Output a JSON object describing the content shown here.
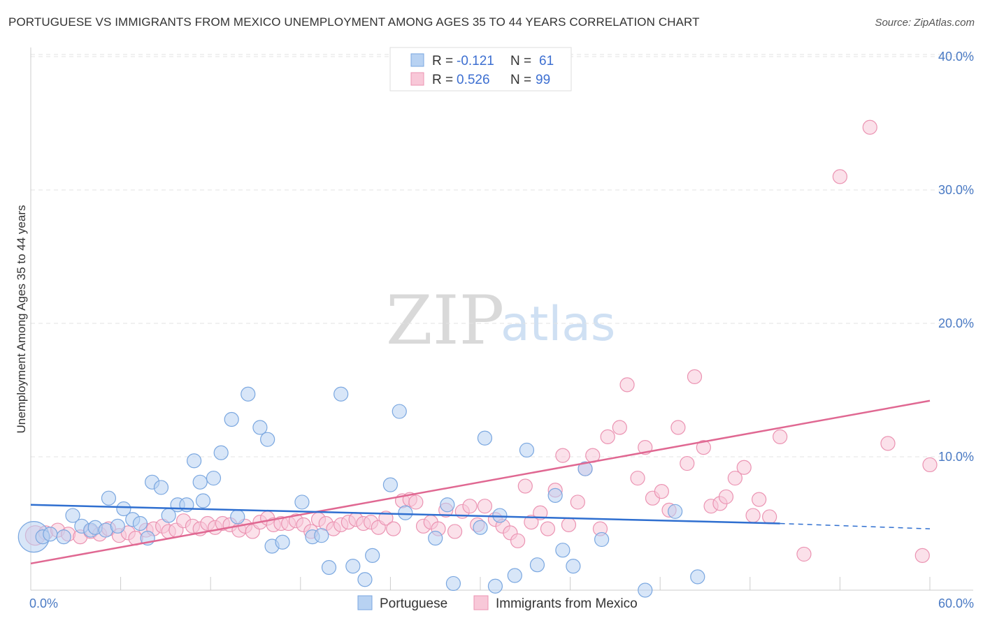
{
  "header": {
    "title": "PORTUGUESE VS IMMIGRANTS FROM MEXICO UNEMPLOYMENT AMONG AGES 35 TO 44 YEARS CORRELATION CHART",
    "source": "Source: ZipAtlas.com"
  },
  "watermark": {
    "zip": "ZIP",
    "atlas": "atlas"
  },
  "legend": {
    "r_label": "R =",
    "n_label": "N =",
    "rows": [
      {
        "r": "-0.121",
        "n": "61"
      },
      {
        "r": "0.526",
        "n": "99"
      }
    ]
  },
  "colors": {
    "portuguese_fill": "#b8d2f2",
    "portuguese_stroke": "#7aa7e0",
    "portuguese_line": "#2f6fd0",
    "mexico_fill": "#f8c8d8",
    "mexico_stroke": "#eb93b2",
    "mexico_line": "#e06892"
  },
  "chart_data": {
    "type": "scatter",
    "title": "PORTUGUESE VS IMMIGRANTS FROM MEXICO UNEMPLOYMENT AMONG AGES 35 TO 44 YEARS CORRELATION CHART",
    "xlabel": "",
    "ylabel": "Unemployment Among Ages 35 to 44 years",
    "xlim": [
      0,
      60
    ],
    "ylim": [
      0,
      40
    ],
    "x_tick_labels": [
      "0.0%",
      "60.0%"
    ],
    "y_ticks": [
      10,
      20,
      30,
      40
    ],
    "y_tick_labels": [
      "10.0%",
      "20.0%",
      "30.0%",
      "40.0%"
    ],
    "grid": true,
    "legend_position": "top-center",
    "series": [
      {
        "name": "Portuguese",
        "r": -0.121,
        "n": 61,
        "trend": {
          "x": [
            0,
            50
          ],
          "y": [
            6.4,
            5.0
          ],
          "dashed_to": [
            60,
            4.6
          ]
        },
        "points": [
          [
            0.2,
            4.0,
            22
          ],
          [
            0.8,
            4.0,
            10
          ],
          [
            1.3,
            4.2,
            10
          ],
          [
            2.2,
            4.0,
            10
          ],
          [
            2.8,
            5.6,
            10
          ],
          [
            3.4,
            4.8,
            10
          ],
          [
            4.0,
            4.5,
            10
          ],
          [
            4.3,
            4.7,
            10
          ],
          [
            5.0,
            4.5,
            10
          ],
          [
            5.2,
            6.9,
            10
          ],
          [
            5.8,
            4.8,
            10
          ],
          [
            6.2,
            6.1,
            10
          ],
          [
            6.8,
            5.3,
            10
          ],
          [
            7.3,
            5.0,
            10
          ],
          [
            7.8,
            3.9,
            10
          ],
          [
            8.1,
            8.1,
            10
          ],
          [
            8.7,
            7.7,
            10
          ],
          [
            9.2,
            5.6,
            10
          ],
          [
            9.8,
            6.4,
            10
          ],
          [
            10.4,
            6.4,
            10
          ],
          [
            10.9,
            9.7,
            10
          ],
          [
            11.3,
            8.1,
            10
          ],
          [
            11.5,
            6.7,
            10
          ],
          [
            12.2,
            8.4,
            10
          ],
          [
            12.7,
            10.3,
            10
          ],
          [
            13.4,
            12.8,
            10
          ],
          [
            13.8,
            5.5,
            10
          ],
          [
            14.5,
            14.7,
            10
          ],
          [
            15.3,
            12.2,
            10
          ],
          [
            15.8,
            11.3,
            10
          ],
          [
            16.1,
            3.3,
            10
          ],
          [
            16.8,
            3.6,
            10
          ],
          [
            18.1,
            6.6,
            10
          ],
          [
            18.8,
            4.0,
            10
          ],
          [
            19.4,
            4.1,
            10
          ],
          [
            19.9,
            1.7,
            10
          ],
          [
            20.7,
            14.7,
            10
          ],
          [
            21.5,
            1.8,
            10
          ],
          [
            22.3,
            0.8,
            10
          ],
          [
            22.8,
            2.6,
            10
          ],
          [
            24.0,
            7.9,
            10
          ],
          [
            24.6,
            13.4,
            10
          ],
          [
            25.0,
            5.8,
            10
          ],
          [
            27.0,
            3.9,
            10
          ],
          [
            27.8,
            6.4,
            10
          ],
          [
            28.2,
            0.5,
            10
          ],
          [
            30.0,
            4.7,
            10
          ],
          [
            30.3,
            11.4,
            10
          ],
          [
            31.0,
            0.3,
            10
          ],
          [
            31.3,
            5.6,
            10
          ],
          [
            32.3,
            1.1,
            10
          ],
          [
            33.1,
            10.5,
            10
          ],
          [
            33.8,
            1.9,
            10
          ],
          [
            35.0,
            7.1,
            10
          ],
          [
            35.5,
            3.0,
            10
          ],
          [
            37.0,
            9.1,
            10
          ],
          [
            36.2,
            1.8,
            10
          ],
          [
            38.1,
            3.8,
            10
          ],
          [
            41.0,
            0.0,
            10
          ],
          [
            43.0,
            5.9,
            10
          ],
          [
            44.5,
            1.0,
            10
          ]
        ]
      },
      {
        "name": "Immigrants from Mexico",
        "r": 0.526,
        "n": 99,
        "trend": {
          "x": [
            0,
            60
          ],
          "y": [
            2.0,
            14.2
          ]
        },
        "points": [
          [
            0.3,
            4.1,
            14
          ],
          [
            1.0,
            4.3,
            10
          ],
          [
            1.8,
            4.5,
            10
          ],
          [
            2.5,
            4.2,
            10
          ],
          [
            3.3,
            4.0,
            10
          ],
          [
            4.0,
            4.4,
            10
          ],
          [
            4.6,
            4.2,
            10
          ],
          [
            5.2,
            4.6,
            10
          ],
          [
            5.9,
            4.1,
            10
          ],
          [
            6.5,
            4.3,
            10
          ],
          [
            7.0,
            3.9,
            10
          ],
          [
            7.7,
            4.5,
            10
          ],
          [
            8.2,
            4.6,
            10
          ],
          [
            8.8,
            4.8,
            10
          ],
          [
            9.2,
            4.4,
            10
          ],
          [
            9.7,
            4.5,
            10
          ],
          [
            10.2,
            5.2,
            10
          ],
          [
            10.8,
            4.8,
            10
          ],
          [
            11.3,
            4.6,
            10
          ],
          [
            11.8,
            5.0,
            10
          ],
          [
            12.3,
            4.7,
            10
          ],
          [
            12.8,
            5.0,
            10
          ],
          [
            13.3,
            4.9,
            10
          ],
          [
            13.9,
            4.5,
            10
          ],
          [
            14.3,
            4.8,
            10
          ],
          [
            14.8,
            4.4,
            10
          ],
          [
            15.3,
            5.1,
            10
          ],
          [
            15.8,
            5.4,
            10
          ],
          [
            16.2,
            4.9,
            10
          ],
          [
            16.7,
            5.0,
            10
          ],
          [
            17.2,
            5.0,
            10
          ],
          [
            17.7,
            5.2,
            10
          ],
          [
            18.2,
            4.9,
            10
          ],
          [
            18.7,
            4.4,
            10
          ],
          [
            19.2,
            5.3,
            10
          ],
          [
            19.7,
            5.0,
            10
          ],
          [
            20.2,
            4.6,
            10
          ],
          [
            20.7,
            4.9,
            10
          ],
          [
            21.2,
            5.1,
            10
          ],
          [
            21.7,
            5.3,
            10
          ],
          [
            22.2,
            5.0,
            10
          ],
          [
            22.7,
            5.1,
            10
          ],
          [
            23.2,
            4.7,
            10
          ],
          [
            23.7,
            5.4,
            10
          ],
          [
            24.2,
            4.6,
            10
          ],
          [
            24.8,
            6.7,
            10
          ],
          [
            25.3,
            6.8,
            10
          ],
          [
            25.7,
            6.6,
            10
          ],
          [
            26.2,
            4.8,
            10
          ],
          [
            26.7,
            5.1,
            10
          ],
          [
            27.2,
            4.6,
            10
          ],
          [
            27.7,
            6.0,
            10
          ],
          [
            28.3,
            4.4,
            10
          ],
          [
            28.8,
            5.9,
            10
          ],
          [
            29.3,
            6.3,
            10
          ],
          [
            29.8,
            4.9,
            10
          ],
          [
            30.3,
            6.3,
            10
          ],
          [
            31.0,
            5.3,
            10
          ],
          [
            31.5,
            4.8,
            10
          ],
          [
            32.0,
            4.3,
            10
          ],
          [
            32.5,
            3.7,
            10
          ],
          [
            33.0,
            7.8,
            10
          ],
          [
            33.4,
            5.1,
            10
          ],
          [
            34.0,
            5.8,
            10
          ],
          [
            34.5,
            4.6,
            10
          ],
          [
            35.0,
            7.5,
            10
          ],
          [
            35.5,
            10.1,
            10
          ],
          [
            35.9,
            4.9,
            10
          ],
          [
            36.5,
            6.6,
            10
          ],
          [
            37.0,
            9.1,
            10
          ],
          [
            37.5,
            10.1,
            10
          ],
          [
            38.0,
            4.6,
            10
          ],
          [
            38.5,
            11.5,
            10
          ],
          [
            39.3,
            12.2,
            10
          ],
          [
            39.8,
            15.4,
            10
          ],
          [
            40.5,
            8.4,
            10
          ],
          [
            41.0,
            10.7,
            10
          ],
          [
            41.5,
            6.9,
            10
          ],
          [
            42.1,
            7.4,
            10
          ],
          [
            42.6,
            6.0,
            10
          ],
          [
            43.2,
            12.2,
            10
          ],
          [
            43.8,
            9.5,
            10
          ],
          [
            44.3,
            16.0,
            10
          ],
          [
            44.9,
            10.7,
            10
          ],
          [
            45.4,
            6.3,
            10
          ],
          [
            46.0,
            6.5,
            10
          ],
          [
            46.4,
            7.0,
            10
          ],
          [
            47.0,
            8.4,
            10
          ],
          [
            47.6,
            9.2,
            10
          ],
          [
            48.2,
            5.6,
            10
          ],
          [
            48.6,
            6.8,
            10
          ],
          [
            49.3,
            5.5,
            10
          ],
          [
            50.0,
            11.5,
            10
          ],
          [
            51.6,
            2.7,
            10
          ],
          [
            54.0,
            31.0,
            10
          ],
          [
            56.0,
            34.7,
            10
          ],
          [
            57.2,
            11.0,
            10
          ],
          [
            59.5,
            2.6,
            10
          ],
          [
            60.0,
            9.4,
            10
          ]
        ]
      }
    ],
    "bottom_legend": [
      "Portuguese",
      "Immigrants from Mexico"
    ]
  }
}
